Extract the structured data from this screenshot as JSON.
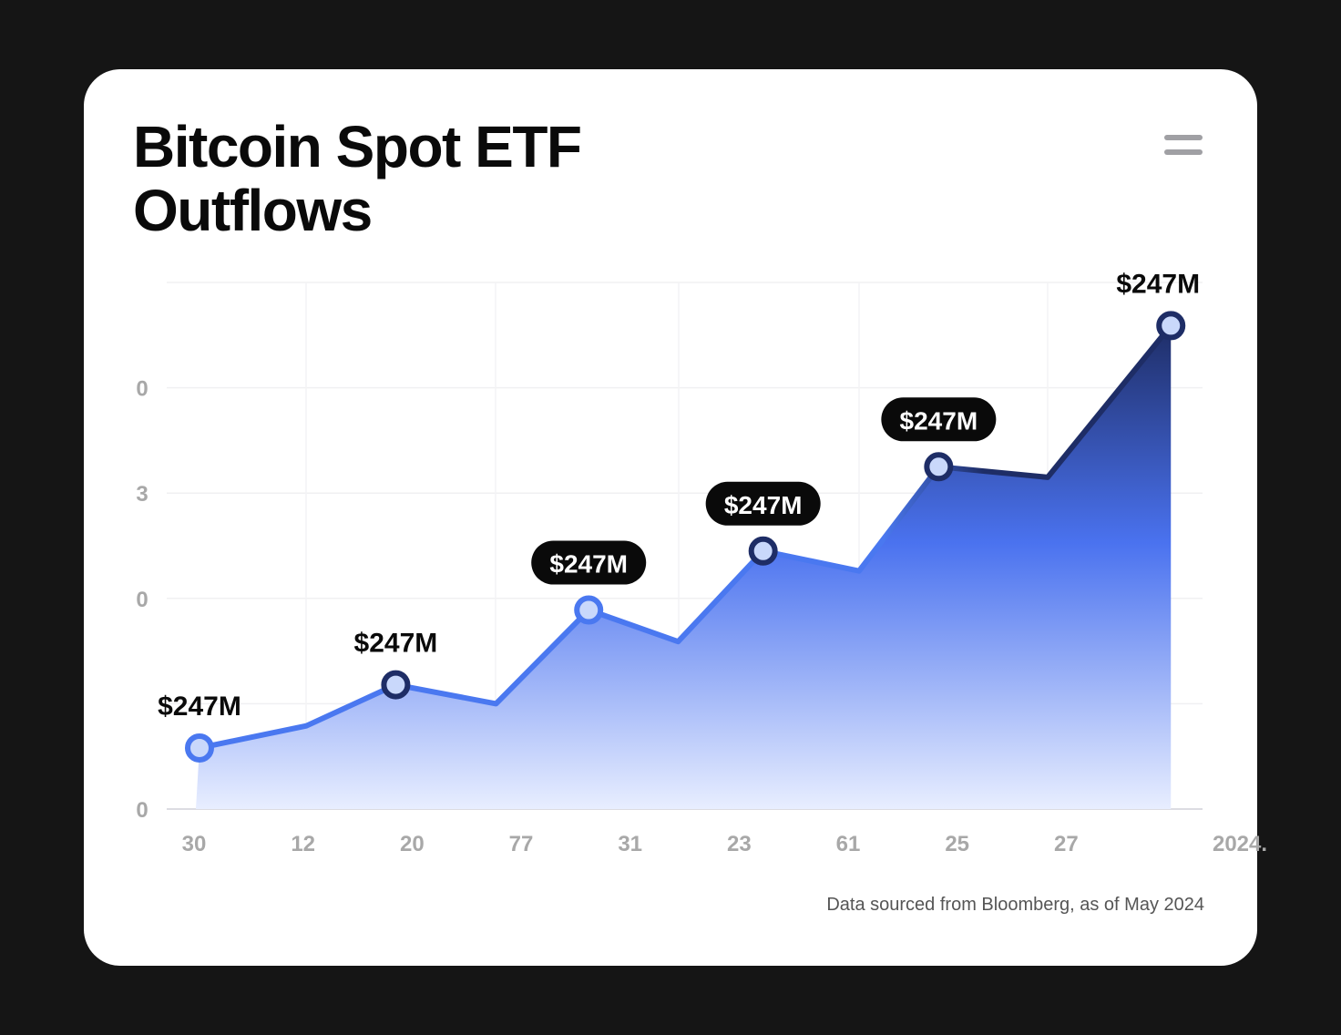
{
  "title": "Bitcoin Spot ETF Outflows",
  "source_note": "Data sourced from Bloomberg, as of May 2024",
  "menu_icon": "hamburger-menu-icon",
  "colors": {
    "line": "#4a78f0",
    "line_dark": "#1e2d66",
    "fill_top": "#1e2d66",
    "fill_mid": "#4a72ef",
    "fill_bottom": "#e8eeff",
    "pill": "#0a0a0a",
    "marker_fill": "#c9d8fb"
  },
  "chart_data": {
    "type": "area",
    "title": "Bitcoin Spot ETF Outflows",
    "xlabel": "",
    "ylabel": "",
    "x_tick_labels": [
      "30",
      "12",
      "20",
      "77",
      "31",
      "23",
      "61",
      "25",
      "27",
      "2024."
    ],
    "y_tick_labels": [
      {
        "level": 0,
        "label": "0"
      },
      {
        "level": 2,
        "label": "0"
      },
      {
        "level": 3,
        "label": "3"
      },
      {
        "level": 4,
        "label": "0"
      }
    ],
    "gridlines": [
      0,
      1,
      2,
      3,
      4,
      5
    ],
    "ylim": [
      0,
      5
    ],
    "grid": true,
    "points": [
      {
        "x": 0.05,
        "y": 0.58,
        "label": "$247M",
        "label_style": "plain",
        "marker": "blue"
      },
      {
        "x": 1.03,
        "y": 0.79
      },
      {
        "x": 1.85,
        "y": 1.18,
        "label": "$247M",
        "label_style": "plain",
        "marker": "dark"
      },
      {
        "x": 2.77,
        "y": 1.0
      },
      {
        "x": 3.62,
        "y": 1.89,
        "label": "$247M",
        "label_style": "pill",
        "marker": "blue"
      },
      {
        "x": 4.44,
        "y": 1.59
      },
      {
        "x": 5.22,
        "y": 2.45,
        "label": "$247M",
        "label_style": "pill",
        "marker": "dark"
      },
      {
        "x": 6.1,
        "y": 2.26
      },
      {
        "x": 6.83,
        "y": 3.25,
        "label": "$247M",
        "label_style": "pill",
        "marker": "dark"
      },
      {
        "x": 7.83,
        "y": 3.15
      },
      {
        "x": 8.96,
        "y": 4.59,
        "label": "$247M",
        "label_style": "plain",
        "marker": "dark"
      }
    ]
  }
}
